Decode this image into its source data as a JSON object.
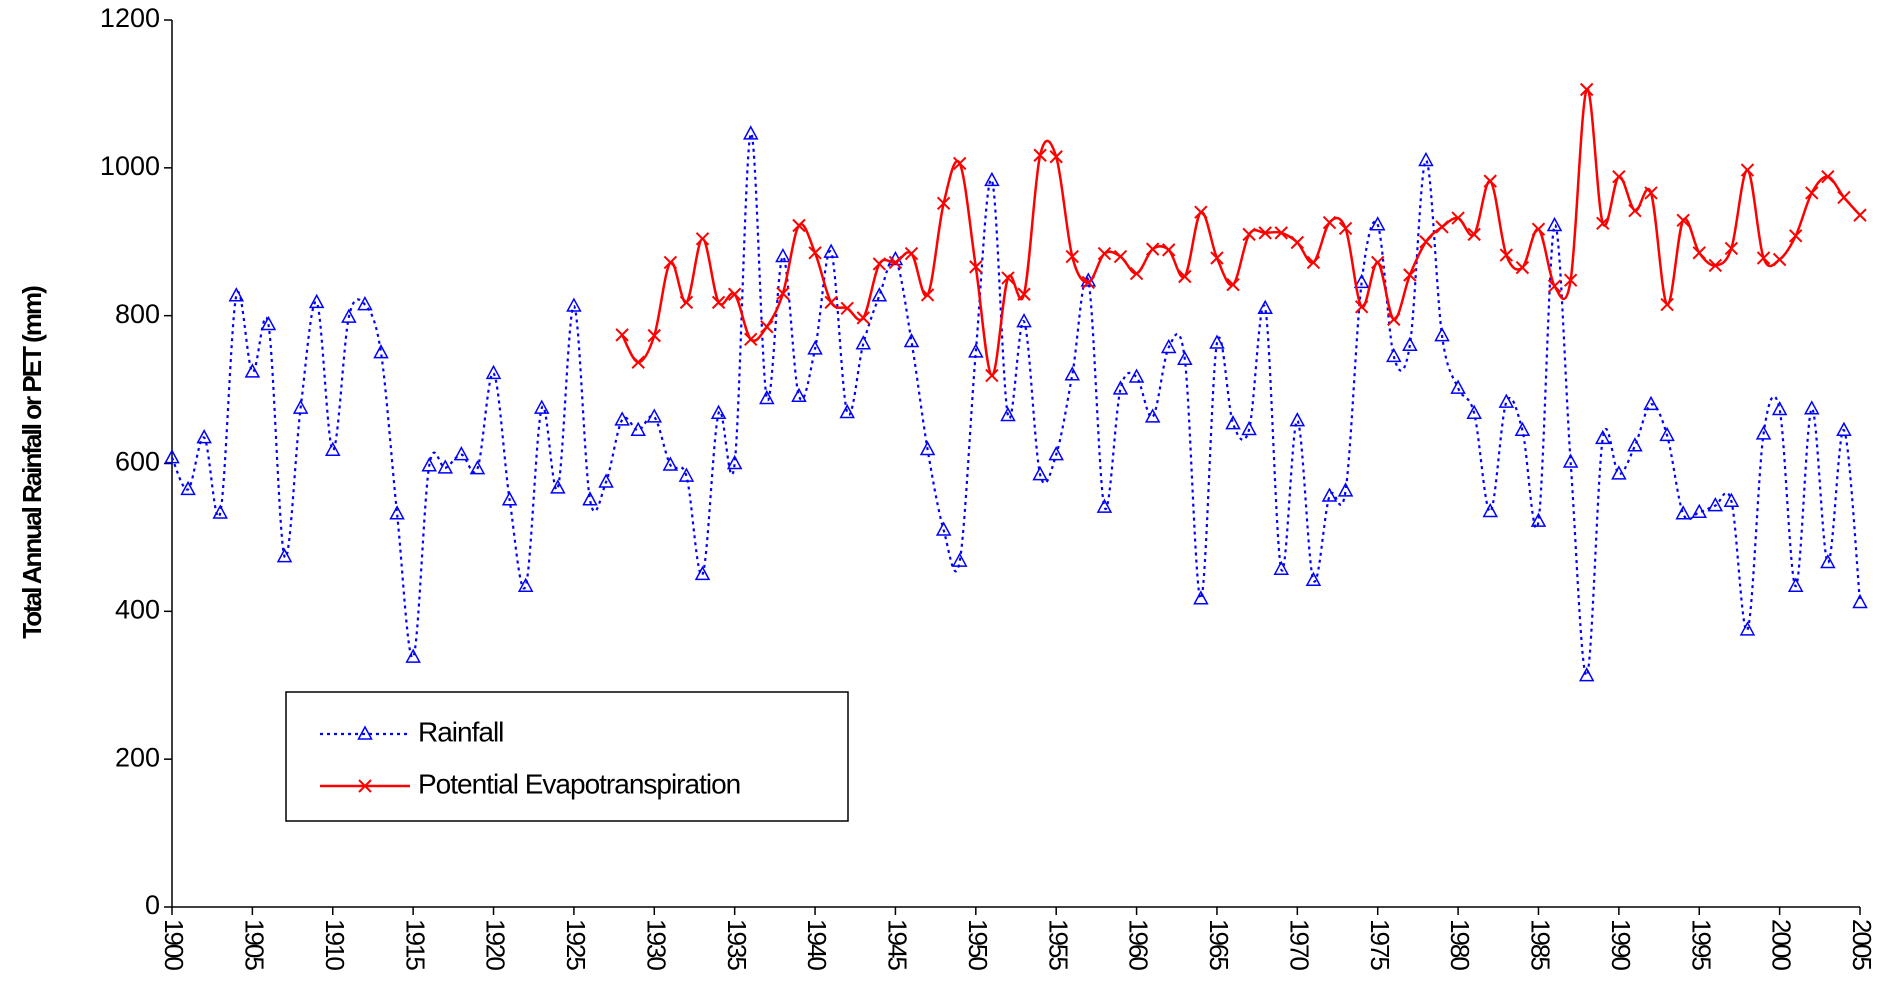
{
  "chart_data": {
    "type": "line",
    "y_label": "Total Annual Rainfall or PET (mm)",
    "x": [
      1900,
      1901,
      1902,
      1903,
      1904,
      1905,
      1906,
      1907,
      1908,
      1909,
      1910,
      1911,
      1912,
      1913,
      1914,
      1915,
      1916,
      1917,
      1918,
      1919,
      1920,
      1921,
      1922,
      1923,
      1924,
      1925,
      1926,
      1927,
      1928,
      1929,
      1930,
      1931,
      1932,
      1933,
      1934,
      1935,
      1936,
      1937,
      1938,
      1939,
      1940,
      1941,
      1942,
      1943,
      1944,
      1945,
      1946,
      1947,
      1948,
      1949,
      1950,
      1951,
      1952,
      1953,
      1954,
      1955,
      1956,
      1957,
      1958,
      1959,
      1960,
      1961,
      1962,
      1963,
      1964,
      1965,
      1966,
      1967,
      1968,
      1969,
      1970,
      1971,
      1972,
      1973,
      1974,
      1975,
      1976,
      1977,
      1978,
      1979,
      1980,
      1981,
      1982,
      1983,
      1984,
      1985,
      1986,
      1987,
      1988,
      1989,
      1990,
      1991,
      1992,
      1993,
      1994,
      1995,
      1996,
      1997,
      1998,
      1999,
      2000,
      2001,
      2002,
      2003,
      2004,
      2005
    ],
    "series": [
      {
        "name": "Rainfall",
        "color": "#0000ff",
        "style": "dotted",
        "marker": "triangle",
        "values": [
          608,
          565,
          635,
          533,
          827,
          724,
          788,
          474,
          675,
          818,
          618,
          798,
          815,
          750,
          532,
          338,
          597,
          594,
          612,
          593,
          722,
          551,
          434,
          675,
          567,
          813,
          551,
          575,
          659,
          645,
          663,
          598,
          583,
          450,
          668,
          600,
          1046,
          688,
          880,
          691,
          755,
          886,
          669,
          762,
          827,
          876,
          765,
          619,
          510,
          468,
          751,
          983,
          665,
          792,
          585,
          612,
          720,
          847,
          541,
          701,
          717,
          663,
          757,
          741,
          417,
          763,
          654,
          646,
          810,
          457,
          658,
          442,
          556,
          563,
          845,
          923,
          745,
          760,
          1010,
          773,
          702,
          668,
          535,
          683,
          645,
          522,
          922,
          602,
          313,
          634,
          586,
          624,
          680,
          638,
          532,
          534,
          543,
          549,
          375,
          640,
          673,
          434,
          674,
          466,
          645,
          412
        ]
      },
      {
        "name": "Potential Evapotranspiration",
        "color": "#ff0000",
        "style": "solid",
        "marker": "x",
        "values": [
          null,
          null,
          null,
          null,
          null,
          null,
          null,
          null,
          null,
          null,
          null,
          null,
          null,
          null,
          null,
          null,
          null,
          null,
          null,
          null,
          null,
          null,
          null,
          null,
          null,
          null,
          null,
          null,
          774,
          737,
          773,
          872,
          818,
          904,
          818,
          829,
          768,
          785,
          830,
          922,
          885,
          818,
          810,
          797,
          870,
          872,
          884,
          828,
          952,
          1006,
          866,
          719,
          851,
          829,
          1017,
          1015,
          880,
          845,
          884,
          880,
          857,
          890,
          889,
          853,
          940,
          878,
          842,
          910,
          912,
          912,
          899,
          872,
          926,
          918,
          812,
          872,
          795,
          855,
          900,
          920,
          932,
          910,
          982,
          882,
          865,
          917,
          840,
          848,
          1106,
          925,
          988,
          942,
          966,
          815,
          929,
          885,
          868,
          891,
          997,
          878,
          876,
          908,
          966,
          988,
          960,
          936
        ]
      }
    ],
    "xlim": [
      1900,
      2005
    ],
    "xticks": [
      1900,
      1905,
      1910,
      1915,
      1920,
      1925,
      1930,
      1935,
      1940,
      1945,
      1950,
      1955,
      1960,
      1965,
      1970,
      1975,
      1980,
      1985,
      1990,
      1995,
      2000,
      2005
    ],
    "ylim": [
      0,
      1200
    ],
    "yticks": [
      0,
      200,
      400,
      600,
      800,
      1000,
      1200
    ],
    "grid": false
  }
}
